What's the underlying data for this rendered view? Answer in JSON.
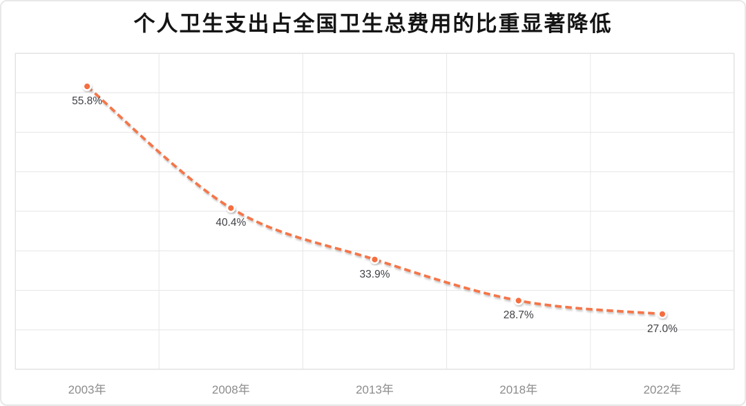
{
  "chart_data": {
    "type": "line",
    "title": "个人卫生支出占全国卫生总费用的比重显著降低",
    "categories": [
      "2003年",
      "2008年",
      "2013年",
      "2018年",
      "2022年"
    ],
    "values": [
      55.8,
      40.4,
      33.9,
      28.7,
      27.0
    ],
    "points": [
      {
        "category": "2003年",
        "value": 55.8,
        "label": "55.8%"
      },
      {
        "category": "2008年",
        "value": 40.4,
        "label": "40.4%"
      },
      {
        "category": "2013年",
        "value": 33.9,
        "label": "33.9%"
      },
      {
        "category": "2018年",
        "value": 28.7,
        "label": "28.7%"
      },
      {
        "category": "2022年",
        "value": 27.0,
        "label": "27.0%"
      }
    ],
    "xlabel": "",
    "ylabel": "",
    "ylim": [
      20,
      60
    ],
    "y_gridline_step": 5,
    "grid": "on",
    "legend": "none",
    "y_axis_labels_visible": false,
    "line_style": "dashed",
    "line_smooth": true,
    "colors": {
      "line": "#F4764A",
      "marker": "#F46E41",
      "marker_ring": "#FFFFFF",
      "point_label": "#3F4045",
      "axis_label": "#8C8C8C",
      "gridline": "#E6E6E6",
      "plot_border": "#E2E2E2",
      "title": "#141414",
      "background": "#FFFFFF",
      "card_border": "#E8E8E8"
    }
  }
}
